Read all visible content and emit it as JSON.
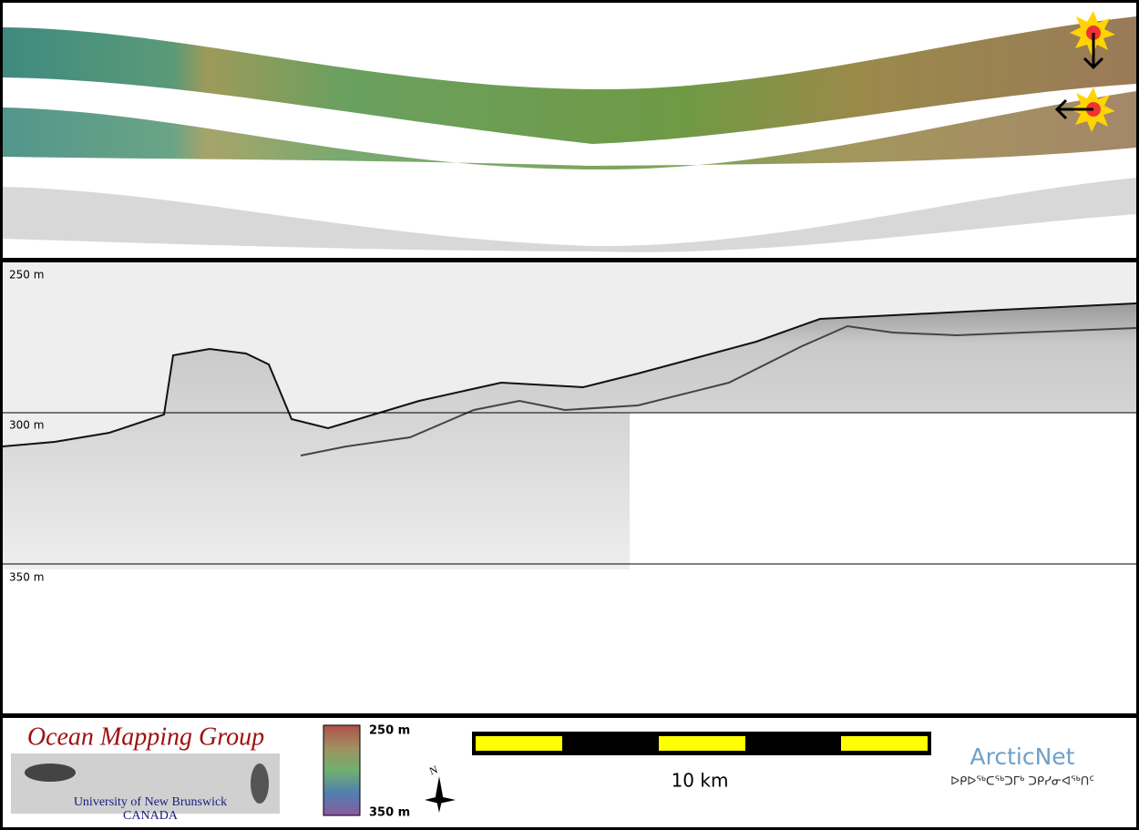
{
  "profile": {
    "depth_labels": [
      "250 m",
      "300 m",
      "350 m"
    ]
  },
  "legend": {
    "top_label": "250 m",
    "bottom_label": "350 m"
  },
  "scale_bar": {
    "label": "10 km"
  },
  "logo_omg": {
    "title": "Ocean Mapping Group",
    "line1": "University of New Brunswick",
    "line2": "CANADA"
  },
  "logo_arcticnet": {
    "title": "ArcticNet",
    "subtitle": "ᐅᑭᐅᖅᑕᖅᑐᒥᒃ ᑐᑭᓯᓂᐊᖅᑎᑦ"
  }
}
